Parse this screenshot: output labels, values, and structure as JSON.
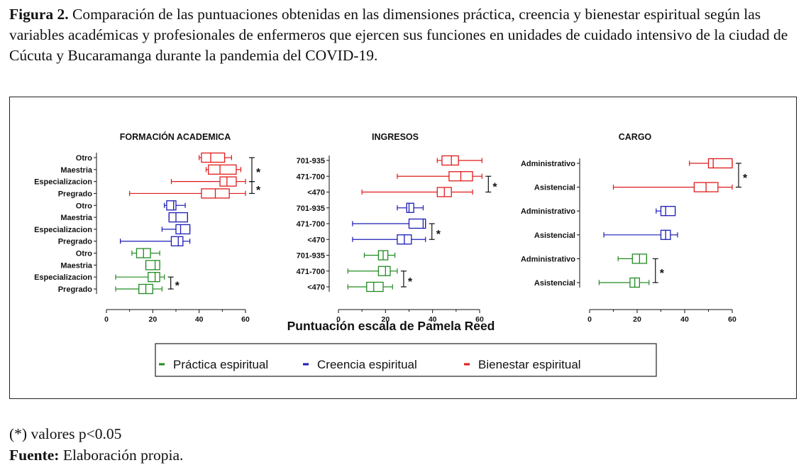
{
  "caption": {
    "label": "Figura 2.",
    "text": " Comparación de las puntuaciones obtenidas en las dimensiones práctica, creencia y bienestar espiritual según las variables académicas y profesionales de enfermeros que ejercen sus funciones en unidades de cuidado intensivo de la ciudad de Cúcuta y Bucaramanga durante la pandemia del COVID-19."
  },
  "notes": {
    "significance": "(*) valores p<0.05",
    "source_label": "Fuente:",
    "source_text": " Elaboración propia."
  },
  "colors": {
    "practica": "#228b22",
    "creencia": "#1c1cb4",
    "bienestar": "#e11b1b"
  },
  "chart_data": {
    "type": "box",
    "xlabel": "Puntuación escala de Pamela Reed",
    "xlim": [
      0,
      60
    ],
    "xticks": [
      0,
      20,
      40,
      60
    ],
    "legend": [
      {
        "label": "Práctica  espiritual",
        "color": "#228b22"
      },
      {
        "label": "Creencia espiritual",
        "color": "#1c1cb4"
      },
      {
        "label": "Bienestar espiritual",
        "color": "#e11b1b"
      }
    ],
    "panels": [
      {
        "title": "FORMACIÓN ACADEMICA",
        "rows": [
          {
            "label": "Otro",
            "series": "bienestar",
            "min": 40,
            "q1": 41,
            "median": 45,
            "q3": 51,
            "max": 54
          },
          {
            "label": "Maestria",
            "series": "bienestar",
            "min": 43,
            "q1": 44,
            "median": 49,
            "q3": 56,
            "max": 58
          },
          {
            "label": "Especializacion",
            "series": "bienestar",
            "min": 28,
            "q1": 49,
            "median": 52,
            "q3": 56,
            "max": 60
          },
          {
            "label": "Pregrado",
            "series": "bienestar",
            "min": 10,
            "q1": 41,
            "median": 47,
            "q3": 53,
            "max": 60
          },
          {
            "label": "Otro",
            "series": "creencia",
            "min": 25,
            "q1": 26,
            "median": 29,
            "q3": 30,
            "max": 34
          },
          {
            "label": "Maestria",
            "series": "creencia",
            "min": 27,
            "q1": 27,
            "median": 30,
            "q3": 35,
            "max": 35
          },
          {
            "label": "Especializacion",
            "series": "creencia",
            "min": 24,
            "q1": 30,
            "median": 32,
            "q3": 36,
            "max": 36
          },
          {
            "label": "Pregrado",
            "series": "creencia",
            "min": 6,
            "q1": 28,
            "median": 31,
            "q3": 33,
            "max": 36
          },
          {
            "label": "Otro",
            "series": "practica",
            "min": 11,
            "q1": 13,
            "median": 16,
            "q3": 19,
            "max": 23
          },
          {
            "label": "Maestria",
            "series": "practica",
            "min": 17,
            "q1": 17,
            "median": 21,
            "q3": 23,
            "max": 23
          },
          {
            "label": "Especializacion",
            "series": "practica",
            "min": 4,
            "q1": 18,
            "median": 21,
            "q3": 23,
            "max": 25
          },
          {
            "label": "Pregrado",
            "series": "practica",
            "min": 4,
            "q1": 14,
            "median": 17,
            "q3": 20,
            "max": 24
          }
        ],
        "significance": [
          {
            "from": 0,
            "to": 2
          },
          {
            "from": 2,
            "to": 3
          },
          {
            "from": 10,
            "to": 11
          }
        ]
      },
      {
        "title": "INGRESOS",
        "rows": [
          {
            "label": "701-935",
            "series": "bienestar",
            "min": 42,
            "q1": 44,
            "median": 48,
            "q3": 51,
            "max": 61
          },
          {
            "label": "471-700",
            "series": "bienestar",
            "min": 25,
            "q1": 47,
            "median": 52,
            "q3": 57,
            "max": 61
          },
          {
            "label": "<470",
            "series": "bienestar",
            "min": 10,
            "q1": 42,
            "median": 45,
            "q3": 48,
            "max": 57
          },
          {
            "label": "701-935",
            "series": "creencia",
            "min": 25,
            "q1": 29,
            "median": 30,
            "q3": 32,
            "max": 36
          },
          {
            "label": "471-700",
            "series": "creencia",
            "min": 6,
            "q1": 30,
            "median": 36,
            "q3": 37,
            "max": 37
          },
          {
            "label": "<470",
            "series": "creencia",
            "min": 6,
            "q1": 25,
            "median": 28,
            "q3": 31,
            "max": 37
          },
          {
            "label": "701-935",
            "series": "practica",
            "min": 11,
            "q1": 17,
            "median": 19,
            "q3": 21,
            "max": 24
          },
          {
            "label": "471-700",
            "series": "practica",
            "min": 4,
            "q1": 17,
            "median": 20,
            "q3": 22,
            "max": 25
          },
          {
            "label": "<470",
            "series": "practica",
            "min": 4,
            "q1": 12,
            "median": 15,
            "q3": 19,
            "max": 23
          }
        ],
        "significance": [
          {
            "from": 1,
            "to": 2
          },
          {
            "from": 4,
            "to": 5
          },
          {
            "from": 7,
            "to": 8
          }
        ]
      },
      {
        "title": "CARGO",
        "rows": [
          {
            "label": "Administrativo",
            "series": "bienestar",
            "min": 42,
            "q1": 50,
            "median": 52,
            "q3": 60,
            "max": 60
          },
          {
            "label": "Asistencial",
            "series": "bienestar",
            "min": 10,
            "q1": 44,
            "median": 49,
            "q3": 54,
            "max": 60
          },
          {
            "label": "Administrativo",
            "series": "creencia",
            "min": 28,
            "q1": 30,
            "median": 32,
            "q3": 36,
            "max": 36
          },
          {
            "label": "Asistencial",
            "series": "creencia",
            "min": 6,
            "q1": 30,
            "median": 32,
            "q3": 34,
            "max": 37
          },
          {
            "label": "Administrativo",
            "series": "practica",
            "min": 12,
            "q1": 18,
            "median": 21,
            "q3": 24,
            "max": 24
          },
          {
            "label": "Asistencial",
            "series": "practica",
            "min": 4,
            "q1": 17,
            "median": 19,
            "q3": 21,
            "max": 25
          }
        ],
        "significance": [
          {
            "from": 0,
            "to": 1
          },
          {
            "from": 4,
            "to": 5
          }
        ]
      }
    ],
    "significance_symbol": "*"
  }
}
